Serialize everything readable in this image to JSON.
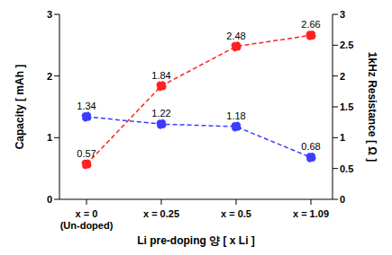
{
  "chart_data": {
    "type": "line",
    "categories": [
      "x = 0\n(Un-doped)",
      "x = 0.25",
      "x = 0.5",
      "x = 1.09"
    ],
    "x_label": "Li pre-doping 양 [ x Li ]",
    "y_label": "Capacity [ mAh ]",
    "y2_label": "1kHz Resistance [ Ω ]",
    "ylim": [
      0,
      3
    ],
    "yticks": [
      0,
      1,
      2,
      3
    ],
    "y2lim": [
      0,
      3
    ],
    "y2ticks": [
      0,
      0.5,
      1,
      1.5,
      2,
      2.5,
      3
    ],
    "grid": false,
    "data_labels": true,
    "series": [
      {
        "color": "#ff2020",
        "values": [
          0.57,
          1.84,
          2.48,
          2.66
        ],
        "marker": "circle",
        "line_style": "dashed"
      },
      {
        "color": "#3c3cff",
        "values": [
          1.34,
          1.22,
          1.18,
          0.68
        ],
        "axis": "y2",
        "marker": "circle",
        "line_style": "dashed"
      }
    ]
  }
}
